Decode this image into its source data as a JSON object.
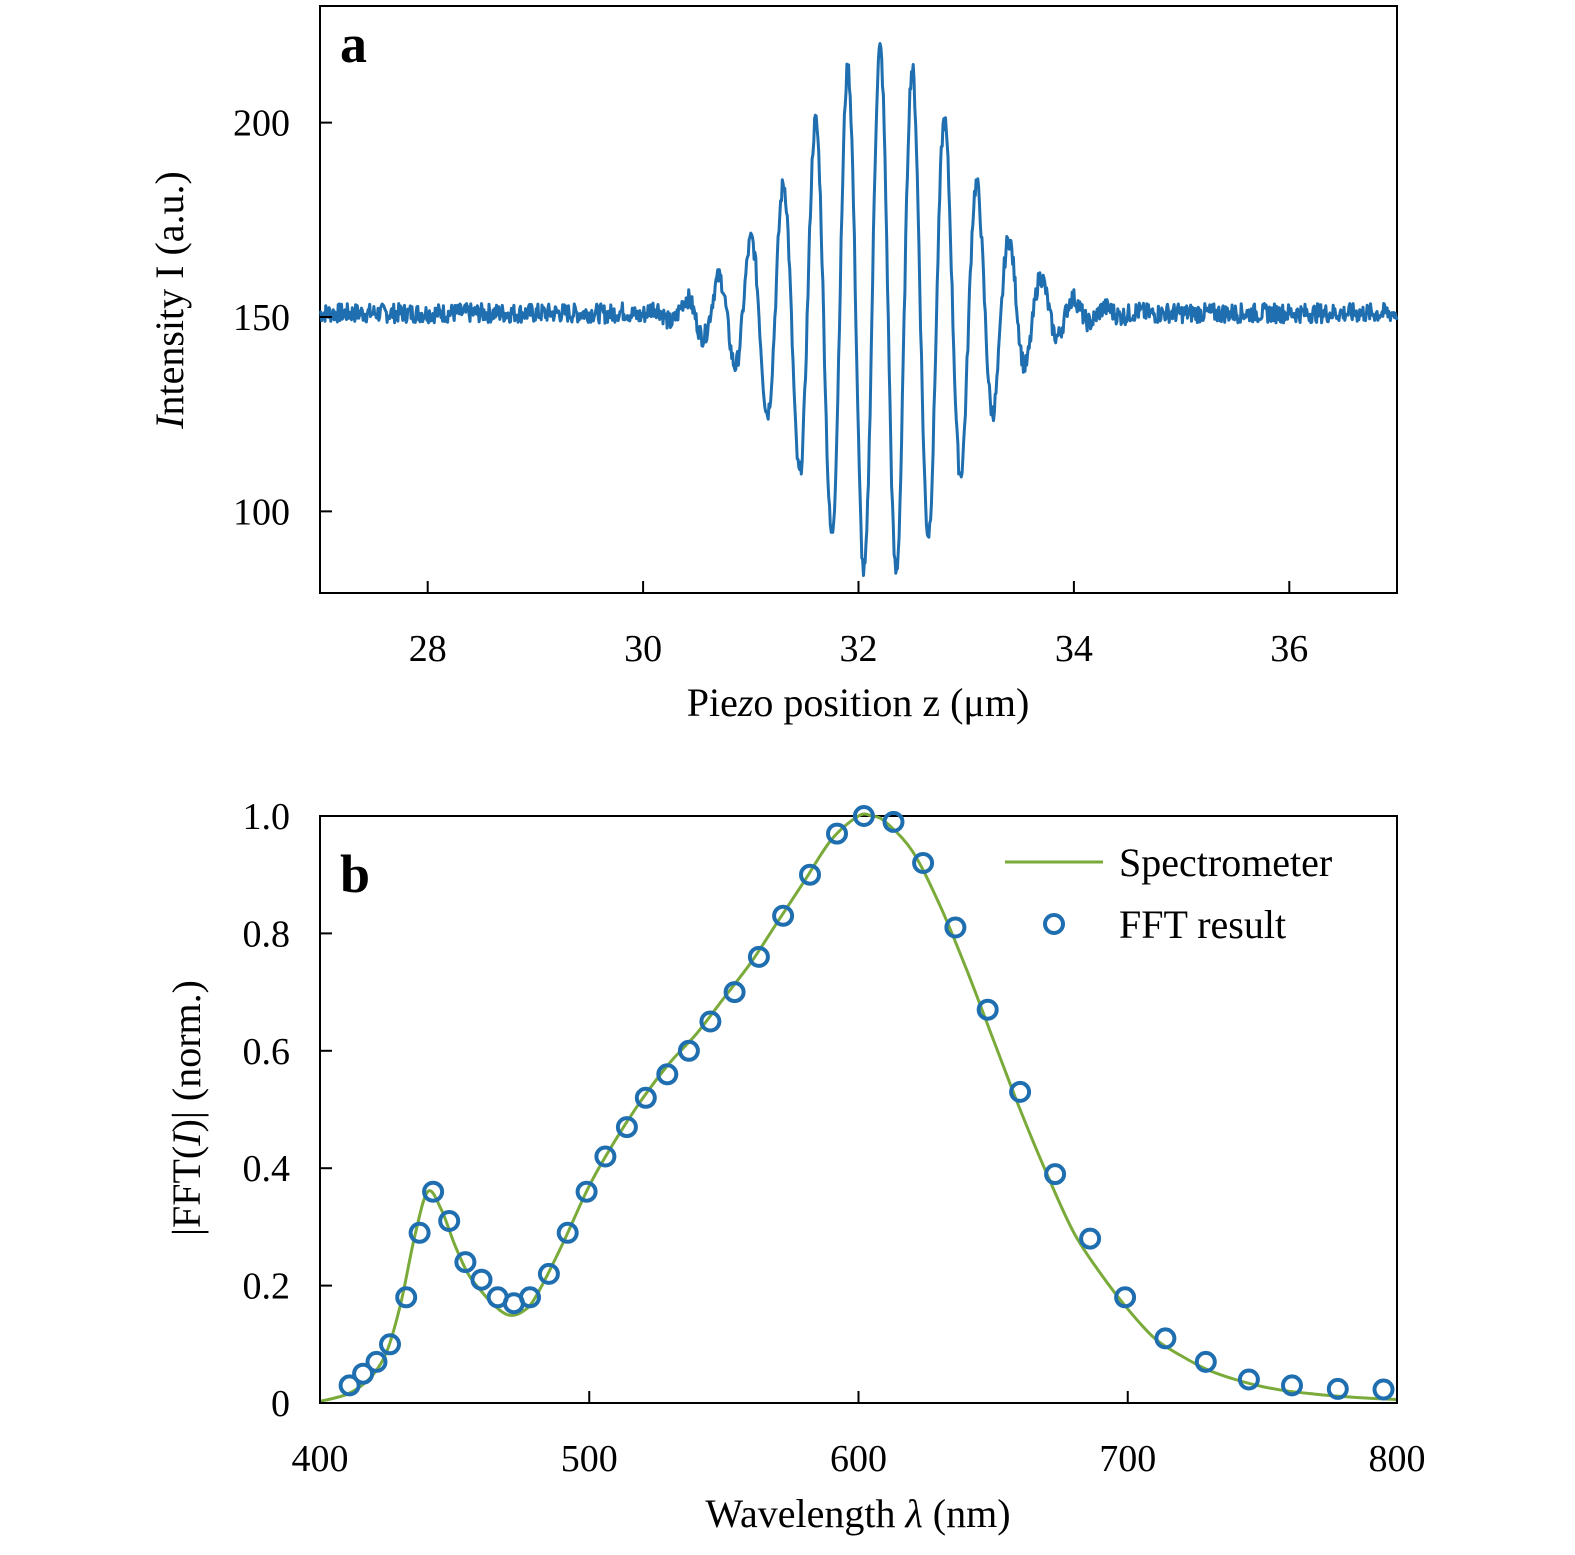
{
  "chart_data": [
    {
      "type": "line",
      "panel_label": "a",
      "xlabel": "Piezo position z (μm)",
      "ylabel": "Intensity I (a.u.)",
      "xlim": [
        27,
        37
      ],
      "ylim": [
        79,
        230
      ],
      "x_ticks": [
        28,
        30,
        32,
        34,
        36
      ],
      "y_ticks": [
        100,
        150,
        200
      ],
      "grid": false,
      "color": "#1f6fb0",
      "signal": {
        "description_type": "white-light interferogram",
        "baseline": 151,
        "center_z": 32.2,
        "fringe_period_um": 0.3,
        "peak_intensity": 218,
        "min_intensity": 82,
        "envelope_width_um": 0.75,
        "noise_amplitude": 2.5
      }
    },
    {
      "type": "line+scatter",
      "panel_label": "b",
      "xlabel": "Wavelength λ (nm)",
      "ylabel": "|FFT(I)| (norm.)",
      "xlim": [
        400,
        800
      ],
      "ylim": [
        0,
        1.0
      ],
      "x_ticks": [
        400,
        500,
        600,
        700,
        800
      ],
      "y_ticks": [
        "0",
        "0.2",
        "0.4",
        "0.6",
        "0.8",
        "1.0"
      ],
      "grid": false,
      "legend_position": "top-right",
      "series": [
        {
          "name": "Spectrometer",
          "kind": "line",
          "color": "#7aab3a",
          "x": [
            400,
            405,
            410,
            415,
            420,
            425,
            430,
            435,
            440,
            445,
            450,
            455,
            460,
            465,
            470,
            475,
            480,
            490,
            500,
            510,
            520,
            530,
            540,
            550,
            560,
            570,
            580,
            590,
            600,
            605,
            610,
            620,
            630,
            640,
            650,
            660,
            670,
            680,
            690,
            700,
            710,
            720,
            730,
            740,
            750,
            760,
            770,
            780,
            790,
            800
          ],
          "y": [
            0.003,
            0.008,
            0.015,
            0.028,
            0.05,
            0.09,
            0.17,
            0.28,
            0.36,
            0.33,
            0.27,
            0.22,
            0.19,
            0.165,
            0.15,
            0.155,
            0.18,
            0.27,
            0.37,
            0.45,
            0.52,
            0.58,
            0.63,
            0.69,
            0.75,
            0.82,
            0.89,
            0.96,
            1.0,
            1.0,
            0.99,
            0.94,
            0.85,
            0.74,
            0.62,
            0.5,
            0.39,
            0.29,
            0.22,
            0.16,
            0.11,
            0.08,
            0.056,
            0.04,
            0.028,
            0.02,
            0.015,
            0.011,
            0.008,
            0.006
          ]
        },
        {
          "name": "FFT result",
          "kind": "scatter",
          "color": "#1f6fb0",
          "x": [
            411,
            416,
            421,
            426,
            432,
            437,
            442,
            448,
            454,
            460,
            466,
            472,
            478,
            485,
            492,
            499,
            506,
            514,
            521,
            529,
            537,
            545,
            554,
            563,
            572,
            582,
            592,
            602,
            613,
            624,
            636,
            648,
            660,
            673,
            686,
            699,
            714,
            729,
            745,
            761,
            778,
            795
          ],
          "y": [
            0.03,
            0.05,
            0.07,
            0.1,
            0.18,
            0.29,
            0.36,
            0.31,
            0.24,
            0.21,
            0.18,
            0.17,
            0.18,
            0.22,
            0.29,
            0.36,
            0.42,
            0.47,
            0.52,
            0.56,
            0.6,
            0.65,
            0.7,
            0.76,
            0.83,
            0.9,
            0.97,
            1.0,
            0.99,
            0.92,
            0.81,
            0.67,
            0.53,
            0.39,
            0.28,
            0.18,
            0.11,
            0.07,
            0.04,
            0.03,
            0.024,
            0.023
          ]
        }
      ]
    }
  ]
}
